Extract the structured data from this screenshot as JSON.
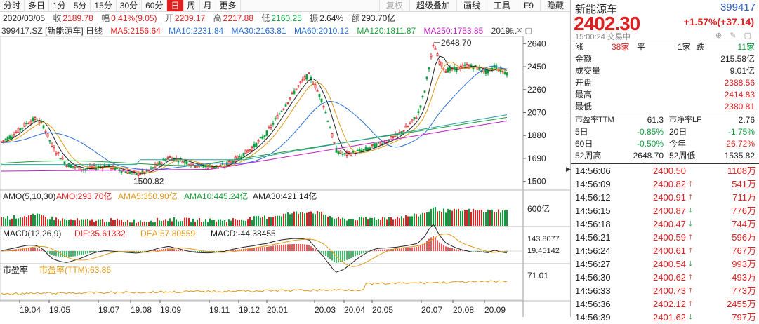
{
  "toolbar": {
    "items": [
      "分时",
      "多日",
      "1分",
      "5分",
      "15分",
      "30分",
      "60分",
      "日",
      "周",
      "月",
      "更多"
    ],
    "active_index": 7,
    "right_items": [
      "复权",
      "超级叠加",
      "画线",
      "工具",
      "F9",
      "隐藏"
    ]
  },
  "info": {
    "date": "2020/03/05",
    "close_label": "收",
    "close": "2189.78",
    "range_label": "幅",
    "range": "0.41%(9.05)",
    "open_label": "开",
    "open": "2209.17",
    "high_label": "高",
    "high": "2217.88",
    "low_label": "低",
    "low": "2160.25",
    "amp_label": "振",
    "amp": "2.64%",
    "amount_label": "额",
    "amount": "293.70亿"
  },
  "ma": {
    "title": "399417.SZ [新能源车] 日线",
    "ma5": "MA5:2156.64",
    "ma10": "MA10:2231.84",
    "ma30": "MA30:2163.81",
    "ma60": "MA60:2010.12",
    "ma120": "MA120:1811.87",
    "ma250": "MA250:1753.85",
    "year": "2019..."
  },
  "amo": {
    "title": "AMO(5,10,30)",
    "amo": "AMO:293.70亿",
    "amo5": "AMA5:350.90亿",
    "amo10": "AMA10:445.24亿",
    "amo30": "AMA30:421.14亿",
    "axis": "600亿"
  },
  "macd": {
    "title": "MACD(12,26,9)",
    "dif": "DIF:35.61332",
    "dea": "DEA:57.80559",
    "macd": "MACD:-44.38455",
    "axis_top": "143.8077",
    "axis_bottom": "19.45142"
  },
  "pe": {
    "title": "市盈率",
    "ttm": "市盈率(TTM):63.86",
    "axis": "71.01"
  },
  "price_axis": [
    "2640",
    "2450",
    "2260",
    "2070",
    "1880",
    "1690",
    "1500"
  ],
  "annotations": {
    "high": "2648.70",
    "low": "1500.82"
  },
  "x_labels": [
    "19.04",
    "19.05",
    "19.07",
    "19.08",
    "19.09",
    "19.11",
    "19.12",
    "20.01",
    "20.03",
    "20.04",
    "20.05",
    "20.07",
    "20.08",
    "20.09"
  ],
  "colors": {
    "up": "#e02020",
    "down": "#0a9e3a",
    "ma5": "#222222",
    "ma10": "#e09a1a",
    "ma30": "#2a6fd6",
    "ma60": "#1aa03a",
    "ma120": "#2aa0a0",
    "ma250": "#c020c0"
  },
  "panel": {
    "name": "新能源车",
    "code": "399417",
    "price": "2402.30",
    "change": "+1.57%(+37.14)",
    "time": "15:00:24 交易中",
    "icons": "⊕ ✎ ▢",
    "stats": {
      "rise_label": "涨",
      "rise": "38家",
      "flat_label": "平",
      "flat": "1家",
      "fall_label": "跌",
      "fall": "11家",
      "amount_label": "金额",
      "amount": "215.58亿",
      "volume_label": "成交量",
      "volume": "9.01亿",
      "open_label": "开盘",
      "open": "2388.56",
      "high_label": "最高",
      "high": "2414.83",
      "low_label": "最低",
      "low": "2380.81",
      "pe_label": "市盈率TTM",
      "pe": "61.3",
      "pb_label": "市净率LF",
      "pb": "2.76",
      "d5_label": "5日",
      "d5": "-0.85%",
      "d20_label": "20日",
      "d20": "-1.75%",
      "d60_label": "60日",
      "d60": "-0.50%",
      "ytd_label": "今年",
      "ytd": "26.72%",
      "wk52h_label": "52周高",
      "wk52h": "2648.70",
      "wk52l_label": "52周低",
      "wk52l": "1535.82"
    },
    "ticks": [
      {
        "time": "14:56:06",
        "price": "2400.50",
        "dir": "",
        "vol": "1108万",
        "vcolor": "up"
      },
      {
        "time": "14:56:09",
        "price": "2400.82",
        "dir": "up",
        "vol": "541万",
        "vcolor": "up"
      },
      {
        "time": "14:56:12",
        "price": "2400.91",
        "dir": "up",
        "vol": "711万",
        "vcolor": "up"
      },
      {
        "time": "14:56:15",
        "price": "2400.87",
        "dir": "dn",
        "vol": "776万",
        "vcolor": "up"
      },
      {
        "time": "14:56:18",
        "price": "2400.47",
        "dir": "dn",
        "vol": "744万",
        "vcolor": "up"
      },
      {
        "time": "14:56:21",
        "price": "2400.59",
        "dir": "up",
        "vol": "596万",
        "vcolor": "up"
      },
      {
        "time": "14:56:24",
        "price": "2400.61",
        "dir": "up",
        "vol": "767万",
        "vcolor": "up"
      },
      {
        "time": "14:56:27",
        "price": "2400.54",
        "dir": "dn",
        "vol": "993万",
        "vcolor": "up"
      },
      {
        "time": "14:56:30",
        "price": "2400.62",
        "dir": "up",
        "vol": "493万",
        "vcolor": "up"
      },
      {
        "time": "14:56:33",
        "price": "2400.73",
        "dir": "up",
        "vol": "773万",
        "vcolor": "up"
      },
      {
        "time": "14:56:36",
        "price": "2402.12",
        "dir": "up",
        "vol": "2455万",
        "vcolor": "up"
      },
      {
        "time": "14:56:39",
        "price": "2401.62",
        "dir": "dn",
        "vol": "797万",
        "vcolor": "up"
      }
    ]
  }
}
